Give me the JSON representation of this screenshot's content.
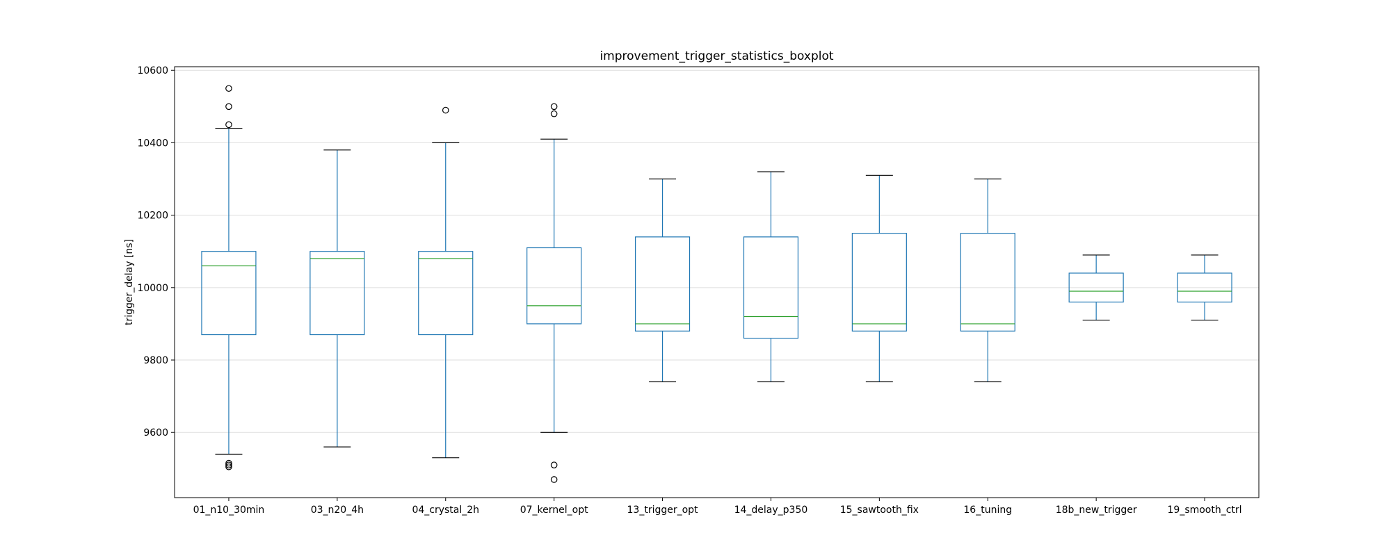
{
  "chart_data": {
    "type": "boxplot",
    "title": "improvement_trigger_statistics_boxplot",
    "xlabel": "",
    "ylabel": "trigger_delay [ns]",
    "ylim": [
      9420,
      10610
    ],
    "yticks": [
      9600,
      9800,
      10000,
      10200,
      10400,
      10600
    ],
    "grid": "y",
    "colors": {
      "box": "#1f77b4",
      "median": "#2ca02c",
      "whisker_cap": "#000000",
      "grid": "#dddddd"
    },
    "categories": [
      "01_n10_30min",
      "03_n20_4h",
      "04_crystal_2h",
      "07_kernel_opt",
      "13_trigger_opt",
      "14_delay_p350",
      "15_sawtooth_fix",
      "16_tuning",
      "18b_new_trigger",
      "19_smooth_ctrl"
    ],
    "boxes": [
      {
        "whislo": 9540,
        "q1": 9870,
        "med": 10060,
        "q3": 10100,
        "whishi": 10440,
        "fliers": [
          10550,
          10500,
          10450,
          9515,
          9510,
          9505
        ]
      },
      {
        "whislo": 9560,
        "q1": 9870,
        "med": 10080,
        "q3": 10100,
        "whishi": 10380,
        "fliers": []
      },
      {
        "whislo": 9530,
        "q1": 9870,
        "med": 10080,
        "q3": 10100,
        "whishi": 10400,
        "fliers": [
          10490
        ]
      },
      {
        "whislo": 9600,
        "q1": 9900,
        "med": 9950,
        "q3": 10110,
        "whishi": 10410,
        "fliers": [
          10500,
          10480,
          9510,
          9470
        ]
      },
      {
        "whislo": 9740,
        "q1": 9880,
        "med": 9900,
        "q3": 10140,
        "whishi": 10300,
        "fliers": []
      },
      {
        "whislo": 9740,
        "q1": 9860,
        "med": 9920,
        "q3": 10140,
        "whishi": 10320,
        "fliers": []
      },
      {
        "whislo": 9740,
        "q1": 9880,
        "med": 9900,
        "q3": 10150,
        "whishi": 10310,
        "fliers": []
      },
      {
        "whislo": 9740,
        "q1": 9880,
        "med": 9900,
        "q3": 10150,
        "whishi": 10300,
        "fliers": []
      },
      {
        "whislo": 9910,
        "q1": 9960,
        "med": 9990,
        "q3": 10040,
        "whishi": 10090,
        "fliers": []
      },
      {
        "whislo": 9910,
        "q1": 9960,
        "med": 9990,
        "q3": 10040,
        "whishi": 10090,
        "fliers": []
      }
    ]
  }
}
